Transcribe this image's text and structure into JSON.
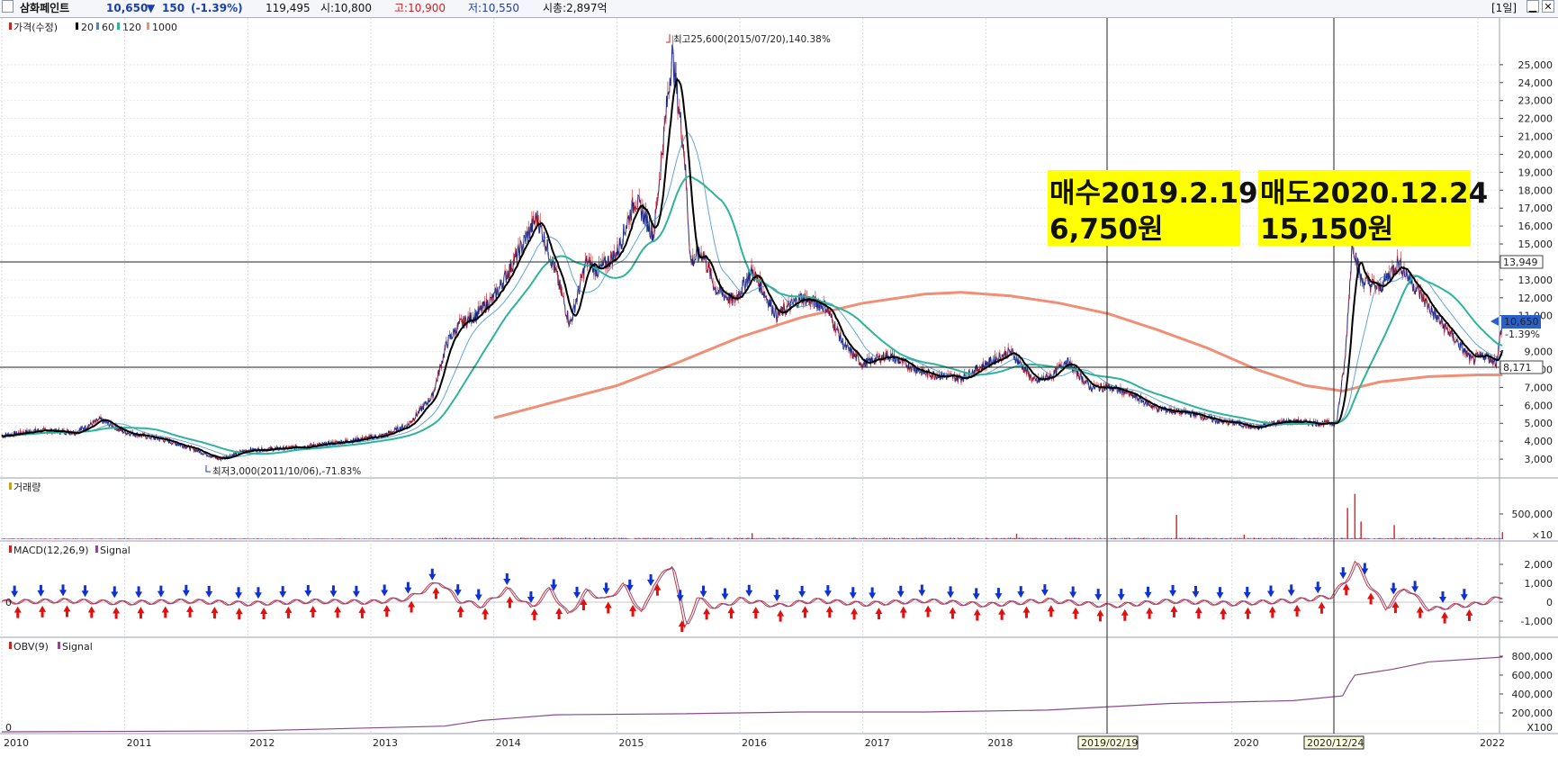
{
  "window": {
    "title": "삼화페인트",
    "price": "10,650",
    "change_arrow": "▼",
    "change": "150",
    "change_pct": "(-1.39%)",
    "volume": "119,495",
    "open_label": "시:10,800",
    "high_label": "고:10,900",
    "low_label": "저:10,550",
    "mcap_label": "시총:2,897억",
    "period_button": "[1일]",
    "minimize_icon": "minimize-icon",
    "close_icon": "close-icon"
  },
  "legends": {
    "price": {
      "title": "가격(수정)",
      "ma": [
        "20",
        "60",
        "120",
        "1000"
      ],
      "colors": [
        "#000000",
        "#3a8fd0",
        "#2fb39a",
        "#f08f76"
      ]
    },
    "volume": {
      "title": "거래량"
    },
    "macd": {
      "title": "MACD(12,26,9)",
      "signal": "Signal"
    },
    "obv": {
      "title": "OBV(9)",
      "signal": "Signal"
    }
  },
  "annotations": {
    "buy": {
      "line1": "매수2019.2.19",
      "line2": "6,750원"
    },
    "sell": {
      "line1": "매도2020.12.24",
      "line2": "15,150원"
    },
    "high": "최고25,600(2015/07/20),140.38%",
    "low": "최저3,000(2011/10/06),-71.83%",
    "vline_labels": [
      "2019/02/19",
      "2020/12/24"
    ],
    "hline_labels": [
      "13,949",
      "8,171"
    ],
    "current_price_box": "10,650",
    "current_change": "-1.39%"
  },
  "colors": {
    "price_line": "#1b2a8a",
    "ma20": "#000000",
    "ma60": "#3a8fd0",
    "ma120": "#2fb39a",
    "ma1000": "#f08f76",
    "up_arrow": "#e01010",
    "down_arrow": "#1030d0",
    "highlight": "#ffff00",
    "obv": "#8a4a8a"
  },
  "chart_data": {
    "type": "line",
    "title": "삼화페인트",
    "x_ticks": [
      "2010",
      "2011",
      "2012",
      "2013",
      "2014",
      "2015",
      "2016",
      "2017",
      "2018",
      "2019/02/19",
      "2020",
      "2020/12/24",
      "2022"
    ],
    "price_axis": {
      "ylim": [
        2100,
        26600
      ],
      "ticks": [
        "3,000",
        "4,000",
        "5,000",
        "6,000",
        "7,000",
        "8,000",
        "9,000",
        "11,000",
        "12,000",
        "13,000",
        "15,000",
        "16,000",
        "17,000",
        "18,000",
        "19,000",
        "20,000",
        "21,000",
        "22,000",
        "23,000",
        "24,000",
        "25,000"
      ]
    },
    "price_series": {
      "name": "가격(수정)",
      "x": [
        2010.0,
        2010.3,
        2010.6,
        2010.8,
        2011.0,
        2011.3,
        2011.5,
        2011.77,
        2012.0,
        2012.3,
        2012.6,
        2012.9,
        2013.1,
        2013.3,
        2013.5,
        2013.62,
        2013.72,
        2013.85,
        2014.0,
        2014.2,
        2014.35,
        2014.5,
        2014.62,
        2014.75,
        2014.85,
        2015.0,
        2015.15,
        2015.3,
        2015.45,
        2015.55,
        2015.6,
        2015.7,
        2015.8,
        2015.95,
        2016.1,
        2016.3,
        2016.5,
        2016.7,
        2016.85,
        2017.0,
        2017.2,
        2017.5,
        2017.8,
        2018.0,
        2018.2,
        2018.4,
        2018.55,
        2018.65,
        2018.85,
        2019.0,
        2019.13,
        2019.4,
        2019.7,
        2019.9,
        2020.05,
        2020.2,
        2020.3,
        2020.5,
        2020.7,
        2020.85,
        2020.92,
        2020.98,
        2021.05,
        2021.2,
        2021.35,
        2021.5,
        2021.65,
        2021.8,
        2021.95,
        2022.05,
        2022.15,
        2022.2
      ],
      "y": [
        4300,
        4600,
        4500,
        5200,
        4500,
        4100,
        3700,
        3000,
        3500,
        3600,
        3800,
        4100,
        4300,
        4900,
        6500,
        9500,
        10500,
        11000,
        12000,
        14500,
        16500,
        13500,
        10500,
        14000,
        13500,
        14500,
        17500,
        15500,
        25600,
        20000,
        14000,
        14500,
        12500,
        11800,
        13500,
        11000,
        12000,
        11500,
        9300,
        8300,
        8800,
        7800,
        7500,
        8300,
        9000,
        7300,
        7700,
        8500,
        7000,
        7000,
        6750,
        5800,
        5500,
        5100,
        5000,
        4700,
        5000,
        5100,
        5000,
        5000,
        8500,
        15150,
        13000,
        12500,
        14000,
        12500,
        11000,
        9800,
        8500,
        8800,
        8400,
        10650
      ]
    },
    "ma1000_series": {
      "name": "1000",
      "x": [
        2014.0,
        2014.5,
        2015.0,
        2015.5,
        2016.0,
        2016.5,
        2017.0,
        2017.5,
        2017.8,
        2018.2,
        2018.6,
        2019.0,
        2019.4,
        2019.8,
        2020.2,
        2020.6,
        2020.9,
        2021.2,
        2021.6,
        2022.0,
        2022.2
      ],
      "y": [
        5300,
        6200,
        7100,
        8400,
        9800,
        10900,
        11700,
        12200,
        12300,
        12100,
        11700,
        11100,
        10200,
        9200,
        8000,
        7100,
        6800,
        7300,
        7600,
        7700,
        7700
      ]
    },
    "volume_axis": {
      "ticks": [
        "500,000",
        "×10"
      ]
    },
    "volume_spikes": [
      {
        "x": 2016.1,
        "v": 120000
      },
      {
        "x": 2018.25,
        "v": 110000
      },
      {
        "x": 2019.55,
        "v": 480000
      },
      {
        "x": 2020.1,
        "v": 90000
      },
      {
        "x": 2020.94,
        "v": 620000
      },
      {
        "x": 2021.0,
        "v": 900000
      },
      {
        "x": 2021.05,
        "v": 350000
      },
      {
        "x": 2021.32,
        "v": 280000
      },
      {
        "x": 2022.2,
        "v": 140000
      }
    ],
    "macd_axis": {
      "ylim": [
        -1500,
        2700
      ],
      "ticks": [
        "2,000",
        "1,000",
        "0",
        "-1,000"
      ]
    },
    "macd_series": {
      "name": "MACD(12,26,9)",
      "x": [
        2010.0,
        2010.5,
        2011.0,
        2011.5,
        2012.0,
        2012.5,
        2013.0,
        2013.3,
        2013.55,
        2013.7,
        2013.9,
        2014.1,
        2014.3,
        2014.45,
        2014.6,
        2014.75,
        2014.9,
        2015.05,
        2015.2,
        2015.3,
        2015.45,
        2015.55,
        2015.65,
        2015.8,
        2016.0,
        2016.3,
        2016.6,
        2017.0,
        2017.5,
        2018.0,
        2018.5,
        2019.0,
        2019.5,
        2020.0,
        2020.5,
        2020.8,
        2020.92,
        2021.0,
        2021.1,
        2021.25,
        2021.4,
        2021.6,
        2021.8,
        2022.0,
        2022.2
      ],
      "y": [
        0,
        80,
        -40,
        60,
        -80,
        50,
        0,
        200,
        1100,
        100,
        -200,
        700,
        -300,
        700,
        -700,
        600,
        100,
        900,
        -600,
        1000,
        2000,
        -1400,
        200,
        -300,
        150,
        -200,
        100,
        -100,
        80,
        -150,
        100,
        -200,
        60,
        -80,
        80,
        300,
        1100,
        2100,
        1000,
        -300,
        800,
        -400,
        -200,
        -100,
        300
      ]
    },
    "macd_buy_signals_count": 60,
    "macd_sell_signals_count": 60,
    "obv_axis": {
      "ticks": [
        "800,000",
        "600,000",
        "400,000",
        "200,000",
        "X100"
      ]
    },
    "obv_series": {
      "name": "OBV(9)",
      "x": [
        2010.0,
        2012.0,
        2013.6,
        2013.9,
        2014.2,
        2014.5,
        2015.5,
        2016.5,
        2017.5,
        2018.5,
        2019.5,
        2020.5,
        2020.9,
        2020.95,
        2021.0,
        2021.3,
        2021.6,
        2022.2
      ],
      "y": [
        0,
        10000,
        60000,
        120000,
        150000,
        180000,
        190000,
        210000,
        210000,
        230000,
        300000,
        330000,
        380000,
        500000,
        600000,
        660000,
        740000,
        790000
      ]
    }
  }
}
